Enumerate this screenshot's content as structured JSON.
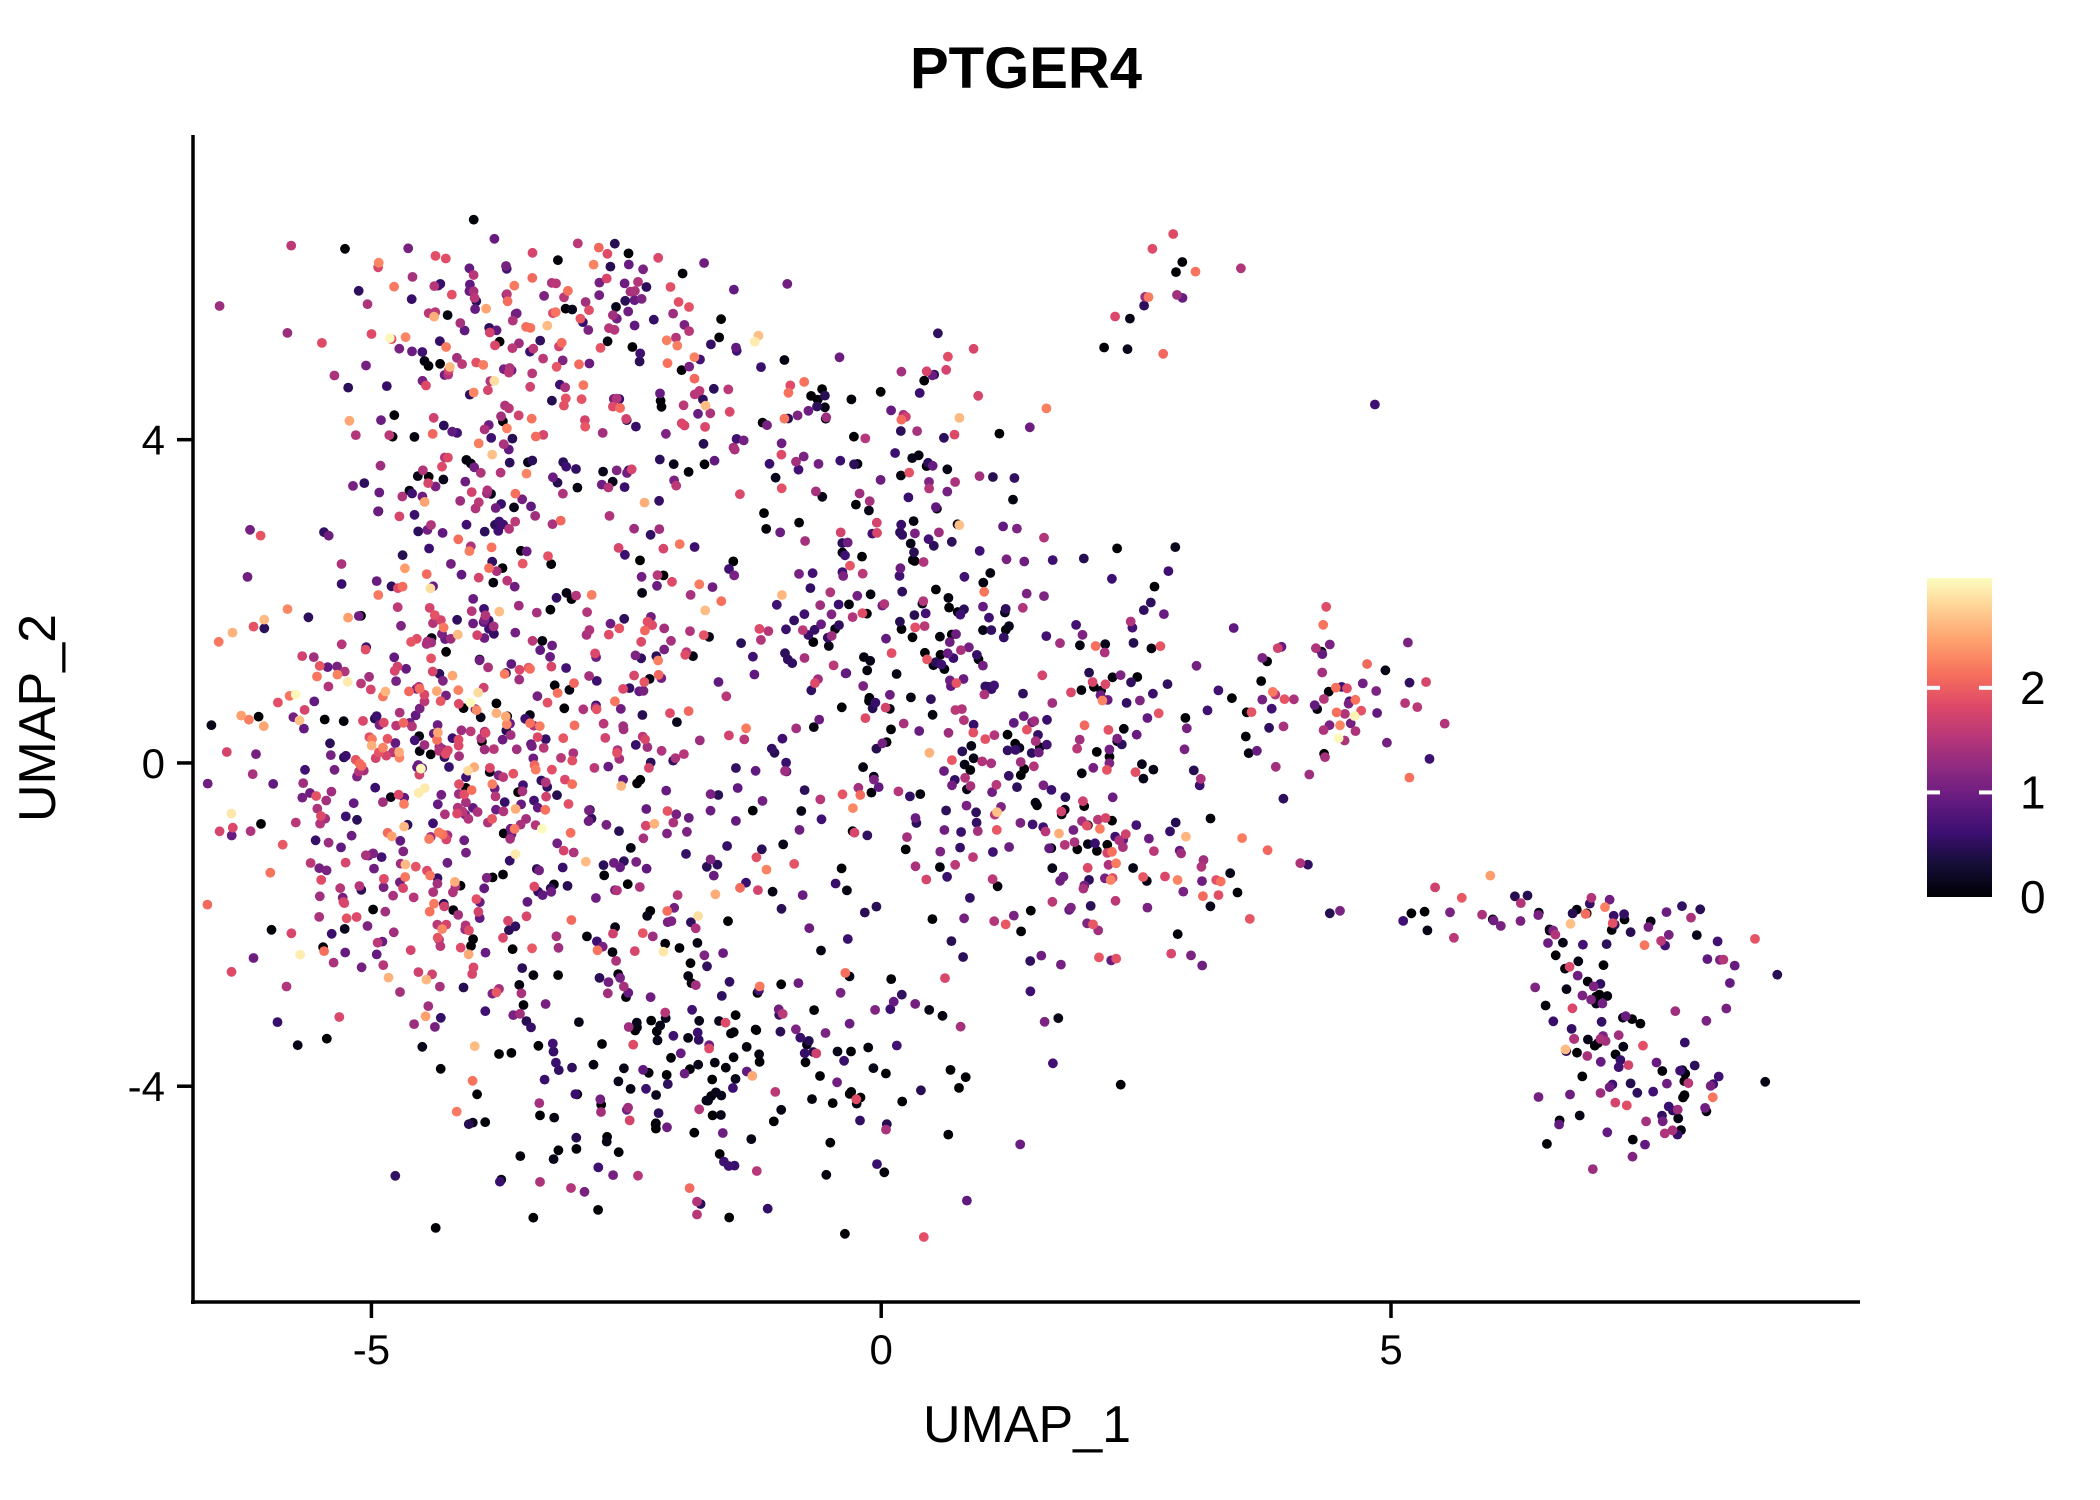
{
  "title": "PTGER4",
  "chart_data": {
    "type": "scatter",
    "title": "PTGER4",
    "xlabel": "UMAP_1",
    "ylabel": "UMAP_2",
    "grid": false,
    "background": "#ffffff",
    "axis_color": "#000000",
    "x_range": [
      -6.75,
      9.6
    ],
    "y_range": [
      -6.67,
      7.77
    ],
    "x_ticks": [
      {
        "v": -5,
        "label": "-5"
      },
      {
        "v": 0,
        "label": "0"
      },
      {
        "v": 5,
        "label": "5"
      }
    ],
    "y_ticks": [
      {
        "v": 4,
        "label": "4"
      },
      {
        "v": 0,
        "label": "0"
      },
      {
        "v": -4,
        "label": "-4"
      }
    ],
    "point_radius_px": 4.9,
    "seed": 42,
    "colormap": {
      "name": "magma",
      "stops": [
        [
          0.0,
          "#000004"
        ],
        [
          0.1,
          "#140E36"
        ],
        [
          0.2,
          "#3B0F70"
        ],
        [
          0.3,
          "#641A80"
        ],
        [
          0.4,
          "#8C2981"
        ],
        [
          0.5,
          "#B73779"
        ],
        [
          0.6,
          "#DE4968"
        ],
        [
          0.7,
          "#F7705C"
        ],
        [
          0.8,
          "#FE9F6D"
        ],
        [
          0.9,
          "#FECE91"
        ],
        [
          1.0,
          "#FCFDBF"
        ]
      ]
    },
    "legend": {
      "position": "right",
      "vmin": 0,
      "vmax": 3.05,
      "ticks": [
        {
          "v": 2,
          "label": "2"
        },
        {
          "v": 1,
          "label": "1"
        },
        {
          "v": 0,
          "label": "0"
        }
      ],
      "tick_mark_color": "#ffffff"
    },
    "expression_levels": {
      "black": 0.03,
      "dark": 0.55,
      "purple": 1.0,
      "magenta": 1.45,
      "pink": 1.83,
      "salmon": 2.18,
      "orange": 2.55,
      "cream": 2.92
    },
    "clusters": [
      {
        "name": "upper-left-top-band",
        "cx": -3.44,
        "cy": 5.36,
        "sx": 0.93,
        "sy": 0.52,
        "n": 115,
        "mix": {
          "black": 0.14,
          "dark": 0.17,
          "purple": 0.2,
          "magenta": 0.19,
          "pink": 0.15,
          "salmon": 0.1,
          "orange": 0.04,
          "cream": 0.01
        }
      },
      {
        "name": "upper-left-right-lobe",
        "cx": -2.46,
        "cy": 4.25,
        "sx": 0.98,
        "sy": 0.74,
        "n": 130,
        "mix": {
          "black": 0.16,
          "dark": 0.19,
          "purple": 0.21,
          "magenta": 0.17,
          "pink": 0.14,
          "salmon": 0.09,
          "orange": 0.03,
          "cream": 0.01
        }
      },
      {
        "name": "upper-left-left-lobe",
        "cx": -4.23,
        "cy": 3.38,
        "sx": 0.59,
        "sy": 0.62,
        "n": 80,
        "mix": {
          "black": 0.13,
          "dark": 0.22,
          "purple": 0.26,
          "magenta": 0.2,
          "pink": 0.13,
          "salmon": 0.05,
          "orange": 0.01
        }
      },
      {
        "name": "upper-left-top-fringe",
        "cx": -3.44,
        "cy": 6.04,
        "sx": 1.27,
        "sy": 0.27,
        "n": 35,
        "mix": {
          "black": 0.2,
          "dark": 0.22,
          "purple": 0.22,
          "magenta": 0.16,
          "pink": 0.12,
          "salmon": 0.07,
          "orange": 0.01
        }
      },
      {
        "name": "top-small-cluster",
        "cx": 2.74,
        "cy": 5.79,
        "sx": 0.36,
        "sy": 0.36,
        "n": 16,
        "mix": {
          "black": 0.19,
          "dark": 0.12,
          "purple": 0.19,
          "magenta": 0.25,
          "pink": 0.15,
          "salmon": 0.1
        }
      },
      {
        "name": "center-dark-shoulder",
        "cx": 0.19,
        "cy": 2.26,
        "sx": 0.74,
        "sy": 1.3,
        "n": 200,
        "mix": {
          "black": 0.3,
          "dark": 0.27,
          "purple": 0.2,
          "magenta": 0.13,
          "pink": 0.07,
          "salmon": 0.025,
          "orange": 0.005
        }
      },
      {
        "name": "left-warm-core",
        "cx": -4.42,
        "cy": 0.78,
        "sx": 1.02,
        "sy": 1.05,
        "n": 270,
        "mix": {
          "black": 0.07,
          "dark": 0.1,
          "purple": 0.16,
          "magenta": 0.22,
          "pink": 0.22,
          "salmon": 0.15,
          "orange": 0.06,
          "cream": 0.02
        }
      },
      {
        "name": "left-lower-lobe",
        "cx": -4.52,
        "cy": -1.32,
        "sx": 0.95,
        "sy": 1.05,
        "n": 215,
        "mix": {
          "black": 0.12,
          "dark": 0.15,
          "purple": 0.2,
          "magenta": 0.2,
          "pink": 0.17,
          "salmon": 0.11,
          "orange": 0.04,
          "cream": 0.01
        }
      },
      {
        "name": "mid-column",
        "cx": -2.36,
        "cy": -0.58,
        "sx": 0.95,
        "sy": 1.5,
        "n": 225,
        "mix": {
          "black": 0.16,
          "dark": 0.18,
          "purple": 0.21,
          "magenta": 0.18,
          "pink": 0.15,
          "salmon": 0.08,
          "orange": 0.03,
          "cream": 0.01
        }
      },
      {
        "name": "bottom-black-band",
        "cx": -1.77,
        "cy": -3.92,
        "sx": 1.3,
        "sy": 0.85,
        "n": 195,
        "mix": {
          "black": 0.55,
          "dark": 0.22,
          "purple": 0.12,
          "magenta": 0.06,
          "pink": 0.04,
          "salmon": 0.01
        }
      },
      {
        "name": "right-purple-lobe",
        "cx": 1.56,
        "cy": -0.33,
        "sx": 1.08,
        "sy": 1.4,
        "n": 275,
        "mix": {
          "black": 0.23,
          "dark": 0.28,
          "purple": 0.25,
          "magenta": 0.13,
          "pink": 0.07,
          "salmon": 0.03,
          "orange": 0.01
        }
      },
      {
        "name": "right-lobe-warm-pocket",
        "cx": 2.44,
        "cy": -1.39,
        "sx": 0.33,
        "sy": 0.3,
        "n": 20,
        "mix": {
          "pink": 0.3,
          "salmon": 0.3,
          "magenta": 0.2,
          "orange": 0.1,
          "purple": 0.1
        }
      },
      {
        "name": "gap-strip",
        "cx": -2.36,
        "cy": 1.96,
        "sx": 1.35,
        "sy": 0.5,
        "n": 45,
        "mix": {
          "black": 0.1,
          "dark": 0.12,
          "purple": 0.2,
          "magenta": 0.22,
          "pink": 0.22,
          "salmon": 0.11,
          "orange": 0.03
        }
      },
      {
        "name": "center-sparse-arc",
        "cx": 2.25,
        "cy": 0.97,
        "sx": 0.45,
        "sy": 0.4,
        "n": 20,
        "mix": {
          "black": 0.3,
          "dark": 0.18,
          "purple": 0.24,
          "magenta": 0.1,
          "pink": 0.09,
          "salmon": 0.09
        }
      },
      {
        "name": "mid-right-cluster",
        "cx": 4.4,
        "cy": 0.78,
        "sx": 0.5,
        "sy": 0.44,
        "n": 55,
        "mix": {
          "black": 0.14,
          "dark": 0.15,
          "purple": 0.24,
          "magenta": 0.22,
          "pink": 0.14,
          "salmon": 0.08,
          "orange": 0.02,
          "cream": 0.01
        }
      },
      {
        "name": "tail-left-handle",
        "cx": 5.87,
        "cy": -1.88,
        "sx": 0.28,
        "sy": 0.2,
        "n": 14,
        "mix": {
          "black": 0.18,
          "dark": 0.22,
          "purple": 0.25,
          "magenta": 0.15,
          "pink": 0.08,
          "salmon": 0.07,
          "orange": 0.05
        }
      },
      {
        "name": "tail-upper-band",
        "cx": 7.05,
        "cy": -2.0,
        "sx": 0.55,
        "sy": 0.24,
        "n": 34,
        "mix": {
          "black": 0.4,
          "dark": 0.22,
          "purple": 0.15,
          "magenta": 0.08,
          "pink": 0.07,
          "salmon": 0.04,
          "orange": 0.03,
          "cream": 0.01
        }
      },
      {
        "name": "tail-bottom-hook",
        "cx": 7.54,
        "cy": -4.17,
        "sx": 0.5,
        "sy": 0.4,
        "n": 55,
        "mix": {
          "black": 0.2,
          "dark": 0.2,
          "purple": 0.26,
          "magenta": 0.18,
          "pink": 0.11,
          "salmon": 0.04,
          "orange": 0.01
        }
      },
      {
        "name": "tail-right-edge",
        "cx": 8.23,
        "cy": -2.38,
        "sx": 0.28,
        "sy": 0.38,
        "n": 12,
        "mix": {
          "black": 0.25,
          "dark": 0.2,
          "purple": 0.3,
          "magenta": 0.15,
          "pink": 0.1
        }
      }
    ],
    "strands": [
      {
        "name": "bridge-to-top-cluster",
        "x0": -0.16,
        "y0": 3.94,
        "x1": 1.07,
        "y1": 5.3,
        "n": 13,
        "jitter": 0.15,
        "mix": {
          "black": 0.15,
          "dark": 0.12,
          "purple": 0.2,
          "magenta": 0.25,
          "pink": 0.2,
          "salmon": 0.08
        }
      },
      {
        "name": "tail-diagonal-strand",
        "x0": 6.66,
        "y0": -2.31,
        "x1": 7.34,
        "y1": -4.05,
        "n": 45,
        "jitter": 0.2,
        "mix": {
          "black": 0.45,
          "dark": 0.25,
          "purple": 0.15,
          "magenta": 0.08,
          "pink": 0.07
        }
      }
    ],
    "singles": [
      {
        "x": -0.91,
        "y": 4.58,
        "level": "salmon"
      },
      {
        "x": -0.63,
        "y": 4.41,
        "level": "dark"
      },
      {
        "x": -0.82,
        "y": 4.3,
        "level": "purple"
      },
      {
        "x": 1.07,
        "y": 2.35,
        "level": "black"
      },
      {
        "x": 3.89,
        "y": 1.42,
        "level": "pink"
      },
      {
        "x": 4.96,
        "y": 0.25,
        "level": "purple"
      },
      {
        "x": 3.54,
        "y": -0.93,
        "level": "salmon"
      },
      {
        "x": 3.79,
        "y": -1.08,
        "level": "salmon"
      },
      {
        "x": 4.11,
        "y": -1.24,
        "level": "magenta"
      },
      {
        "x": 4.4,
        "y": -1.86,
        "level": "dark"
      },
      {
        "x": 4.5,
        "y": -1.83,
        "level": "purple"
      },
      {
        "x": 5.2,
        "y": -1.86,
        "level": "black"
      },
      {
        "x": 5.33,
        "y": -1.84,
        "level": "black"
      }
    ]
  }
}
